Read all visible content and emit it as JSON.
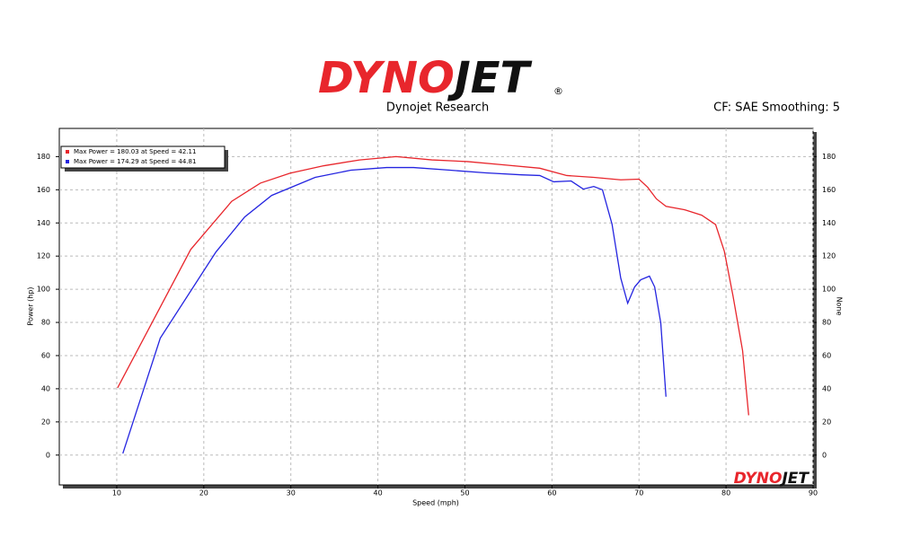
{
  "chart_data": {
    "type": "line",
    "logo_parts": [
      "DYNO",
      "JET"
    ],
    "logo_mark": "®",
    "subtitle": "Dynojet Research",
    "annotation": "CF: SAE Smoothing: 5",
    "x_label": "Speed (mph)",
    "y_label": "Power (hp)",
    "y2_label": "None",
    "footer_logo_parts": [
      "DYNO",
      "JET"
    ],
    "xlim": [
      3.4,
      90
    ],
    "xticks": [
      10,
      20,
      30,
      40,
      50,
      60,
      70,
      80,
      90
    ],
    "ylim": [
      -18,
      197
    ],
    "yticks": [
      0,
      20,
      40,
      60,
      80,
      100,
      120,
      140,
      160,
      180
    ],
    "grid": true,
    "legend": "top-left",
    "series": [
      {
        "name": "Max Power = 180.03 at Speed = 42.11",
        "color": "#e8262c",
        "x": [
          10.1,
          18.5,
          23.2,
          26.5,
          29.9,
          33.8,
          37.9,
          42.1,
          46.2,
          50.3,
          54.5,
          58.6,
          61.7,
          64.8,
          67.9,
          70,
          71,
          72,
          73.1,
          75.2,
          77.2,
          78.8,
          79.8,
          80.8,
          81.9,
          82.6
        ],
        "values": [
          40.6,
          124,
          153,
          164,
          170,
          174.5,
          178,
          180,
          178,
          177,
          175,
          173,
          168.6,
          167.5,
          166,
          166.4,
          161.5,
          154.5,
          150,
          148,
          144.7,
          139,
          123,
          96,
          63,
          24
        ]
      },
      {
        "name": "Max Power = 174.29 at Speed = 44.81",
        "color": "#2424e0",
        "x": [
          10.7,
          15,
          21.4,
          24.7,
          27.8,
          32.8,
          36.9,
          41,
          44.1,
          48.3,
          52.4,
          56.5,
          58.6,
          60.2,
          62.2,
          63.6,
          64.8,
          65.8,
          66.9,
          67.9,
          68.7,
          69.5,
          70.2,
          71.2,
          71.8,
          72.5,
          73.1
        ],
        "values": [
          1,
          70.5,
          122.5,
          143.6,
          156.6,
          167.5,
          171.8,
          173.4,
          173.4,
          171.8,
          170.2,
          169,
          168.6,
          164.8,
          165.3,
          160.4,
          162,
          160,
          139.3,
          106.8,
          91.6,
          101.4,
          105.7,
          107.9,
          101.4,
          79.7,
          35.2
        ]
      }
    ]
  }
}
